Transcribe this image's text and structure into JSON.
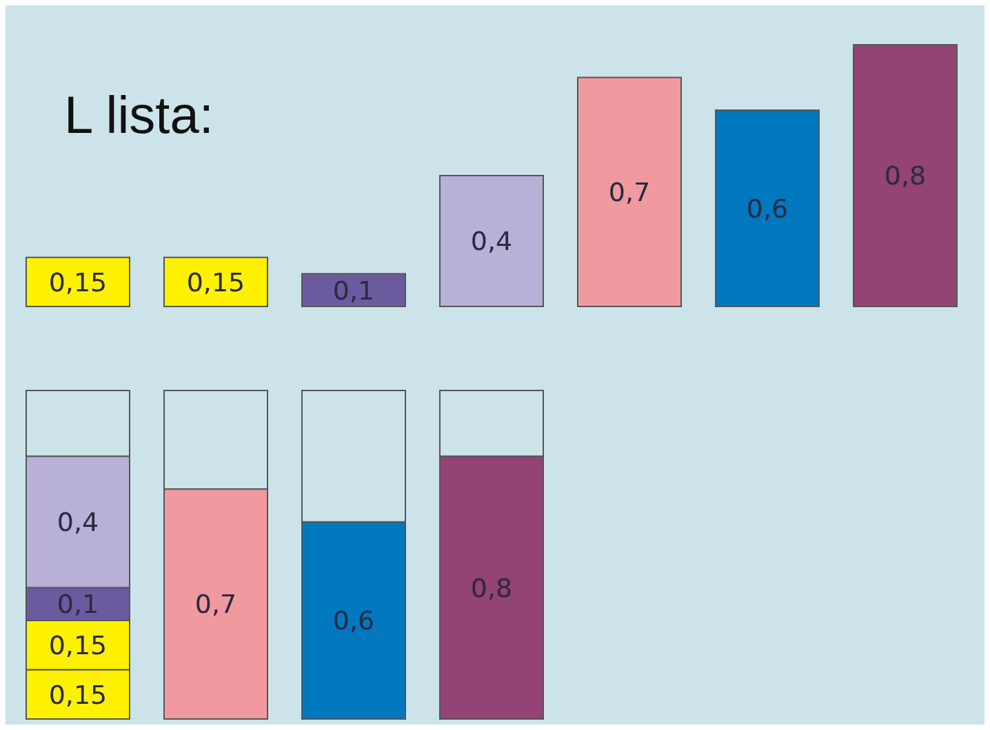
{
  "chart_data": [
    {
      "type": "bar",
      "title": "L lista:",
      "categories": [
        null,
        null,
        null,
        null,
        null,
        null,
        null
      ],
      "values": [
        0.15,
        0.15,
        0.1,
        0.4,
        0.7,
        0.6,
        0.8
      ],
      "colors": [
        "#fff200",
        "#fff200",
        "#6b5b9e",
        "#b8b0d6",
        "#f09aa0",
        "#0078bf",
        "#934374"
      ],
      "value_labels": [
        "0,15",
        "0,15",
        "0,1",
        "0,4",
        "0,7",
        "0,6",
        "0,8"
      ]
    },
    {
      "type": "bar",
      "stacked": true,
      "categories": [
        null,
        null,
        null,
        null
      ],
      "series": [
        {
          "colors": [
            "#fff200",
            "#f09aa0",
            "#0078bf",
            "#934374"
          ],
          "values": [
            0.15,
            0.7,
            0.6,
            0.8
          ],
          "value_labels": [
            "0,15",
            "0,7",
            "0,6",
            "0,8"
          ]
        },
        {
          "colors": [
            "#fff200",
            null,
            null,
            null
          ],
          "values": [
            0.15,
            null,
            null,
            null
          ],
          "value_labels": [
            "0,15",
            null,
            null,
            null
          ]
        },
        {
          "colors": [
            "#6b5b9e",
            null,
            null,
            null
          ],
          "values": [
            0.1,
            null,
            null,
            null
          ],
          "value_labels": [
            "0,1",
            null,
            null,
            null
          ]
        },
        {
          "colors": [
            "#b8b0d6",
            null,
            null,
            null
          ],
          "values": [
            0.4,
            null,
            null,
            null
          ],
          "value_labels": [
            "0,4",
            null,
            null,
            null
          ]
        },
        {
          "colors": [
            "#cce3ea",
            "#cce3ea",
            "#cce3ea",
            "#cce3ea"
          ],
          "values": [
            0.2,
            0.3,
            0.4,
            0.2
          ],
          "value_labels": [
            null,
            null,
            null,
            null
          ]
        }
      ]
    }
  ]
}
